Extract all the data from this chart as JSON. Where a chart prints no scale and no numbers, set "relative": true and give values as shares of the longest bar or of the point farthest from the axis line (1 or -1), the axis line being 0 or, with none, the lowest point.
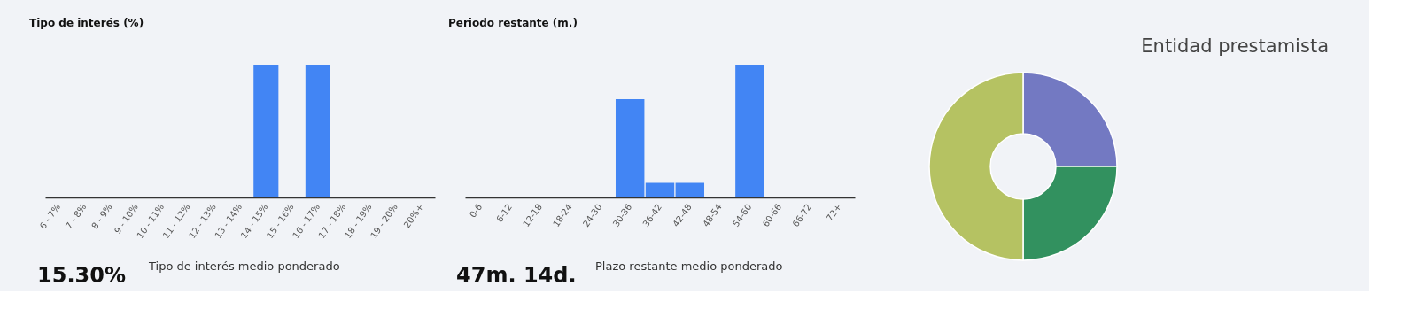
{
  "chart_data": [
    {
      "type": "bar",
      "title": "Tipo de interés (%)",
      "relative": true,
      "color": "#4285f4",
      "tick_labels": "x",
      "categories": [
        "6 - 7%",
        "7 - 8%",
        "8 - 9%",
        "9 - 10%",
        "10 - 11%",
        "11 - 12%",
        "12 - 13%",
        "13 - 14%",
        "14 - 15%",
        "15 - 16%",
        "16 - 17%",
        "17 - 18%",
        "18 - 19%",
        "19 - 20%",
        "20%+"
      ],
      "values": [
        0,
        0,
        0,
        0,
        0,
        0,
        0,
        0,
        1,
        0,
        1,
        0,
        0,
        0,
        0
      ],
      "annotations": [
        "15.30%",
        "Tipo de interés medio ponderado"
      ]
    },
    {
      "type": "bar",
      "title": "Periodo restante (m.)",
      "relative": true,
      "color": "#4285f4",
      "tick_labels": "x",
      "categories": [
        "0-6",
        "6-12",
        "12-18",
        "18-24",
        "24-30",
        "30-36",
        "36-42",
        "42-48",
        "48-54",
        "54-60",
        "60-66",
        "66-72",
        "72+"
      ],
      "values": [
        0,
        0,
        0,
        0,
        0,
        0.74,
        0.11,
        0.11,
        0,
        1,
        0,
        0,
        0
      ],
      "annotations": [
        "47m. 14d.",
        "Plazo restante medio ponderado"
      ]
    },
    {
      "type": "donut",
      "title": "Entidad prestamista",
      "categories": [
        null,
        null,
        null
      ],
      "values": [
        25,
        25,
        50
      ],
      "colors": [
        "#7379c2",
        "#32915f",
        "#b5c262"
      ]
    }
  ]
}
